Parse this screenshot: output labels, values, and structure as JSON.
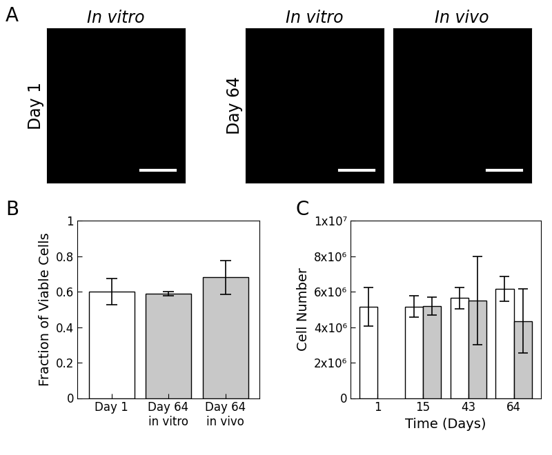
{
  "images": {
    "panel_label": "A",
    "panels": [
      {
        "title": "In vitro",
        "row_label": "Day 1"
      },
      {
        "title": "In vitro",
        "row_label": "Day 64"
      },
      {
        "title": "In vivo",
        "row_label": null
      }
    ]
  },
  "chart_data": [
    {
      "type": "bar",
      "panel_label": "B",
      "categories": [
        "Day 1",
        "Day 64\nin vitro",
        "Day 64\nin vivo"
      ],
      "values": [
        0.6,
        0.59,
        0.68
      ],
      "errors": [
        0.075,
        0.012,
        0.095
      ],
      "colors": [
        "#ffffff",
        "#c8c8c8",
        "#c8c8c8"
      ],
      "y_label": "Fraction of Viable Cells",
      "ylim": [
        0,
        1
      ],
      "yticks": [
        0,
        0.2,
        0.4,
        0.6,
        0.8,
        1
      ],
      "grid": false
    },
    {
      "type": "bar",
      "panel_label": "C",
      "categories": [
        "1",
        "15",
        "43",
        "64"
      ],
      "series": [
        {
          "color": "#ffffff",
          "values": [
            5150000,
            5150000,
            5650000,
            6150000
          ],
          "errors": [
            1100000,
            600000,
            600000,
            700000
          ]
        },
        {
          "color": "#c8c8c8",
          "values": [
            null,
            5200000,
            5500000,
            4350000
          ],
          "errors": [
            null,
            500000,
            2500000,
            1800000
          ]
        }
      ],
      "x_label": "Time (Days)",
      "y_label": "Cell Number",
      "ylim": [
        0,
        10000000
      ],
      "yticks": [
        0,
        {
          "value": 2000000,
          "label": "2x10⁶"
        },
        {
          "value": 4000000,
          "label": "4x10⁶"
        },
        {
          "value": 6000000,
          "label": "6x10⁶"
        },
        {
          "value": 8000000,
          "label": "8x10⁶"
        },
        {
          "value": 10000000,
          "label": "1x10⁷"
        }
      ],
      "grid": false
    }
  ]
}
